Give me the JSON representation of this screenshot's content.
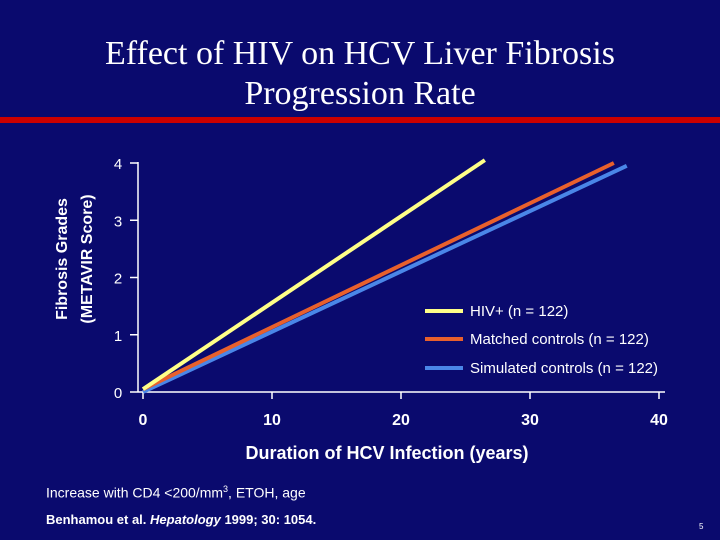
{
  "slide": {
    "title_line1": "Effect of HIV on HCV Liver Fibrosis",
    "title_line2": "Progression Rate",
    "note_prefix": "Increase with CD4 <200/mm",
    "note_sup": "3",
    "note_suffix": ", ETOH, age",
    "citation_authors": "Benhamou et al. ",
    "citation_journal": "Hepatology",
    "citation_rest": " 1999; 30: 1054.",
    "slide_number": "5"
  },
  "colors": {
    "background": "#0a0a6e",
    "rule": "#cc0000",
    "hiv": "#ffff88",
    "matched": "#e8602c",
    "simulated": "#4a86e8"
  },
  "chart_data": {
    "type": "line",
    "title": "",
    "xlabel": "Duration of HCV Infection (years)",
    "ylabel_line1": "Fibrosis Grades",
    "ylabel_line2": "(METAVIR Score)",
    "xlim": [
      0,
      40
    ],
    "ylim": [
      0,
      4
    ],
    "xticks": [
      "0",
      "10",
      "20",
      "30",
      "40"
    ],
    "yticks": [
      "0",
      "1",
      "2",
      "3",
      "4"
    ],
    "grid": false,
    "legend_position": "right",
    "series": [
      {
        "name": "HIV+ (n = 122)",
        "color": "#ffff88",
        "x": [
          0,
          26.5
        ],
        "y": [
          0.05,
          4.05
        ]
      },
      {
        "name": "Matched controls (n = 122)",
        "color": "#e8602c",
        "x": [
          0,
          36.5
        ],
        "y": [
          0.05,
          4.0
        ]
      },
      {
        "name": "Simulated controls (n = 122)",
        "color": "#4a86e8",
        "x": [
          0,
          37.5
        ],
        "y": [
          0.0,
          3.95
        ]
      }
    ]
  }
}
